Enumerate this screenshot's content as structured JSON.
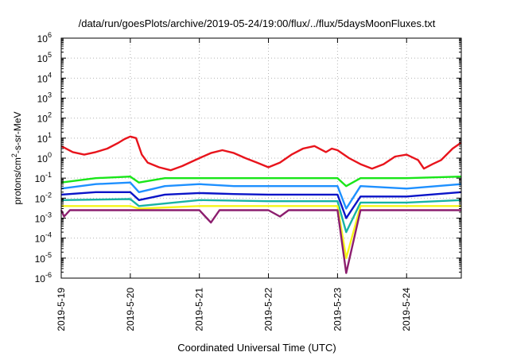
{
  "chart_data": {
    "type": "line",
    "title": "/data/run/goesPlots/archive/2019-05-24/19:00/flux/../flux/5daysMoonFluxes.txt",
    "xlabel": "Coordinated Universal Time (UTC)",
    "ylabel": {
      "pre": "protons/cm",
      "sup": "2",
      "post": "-s-sr-MeV"
    },
    "yscale": "log",
    "ylim": [
      1e-06,
      1000000.0
    ],
    "yticks": [
      {
        "value": 1e-06,
        "base": "10",
        "exp": "-6"
      },
      {
        "value": 1e-05,
        "base": "10",
        "exp": "-5"
      },
      {
        "value": 0.0001,
        "base": "10",
        "exp": "-4"
      },
      {
        "value": 0.001,
        "base": "10",
        "exp": "-3"
      },
      {
        "value": 0.01,
        "base": "10",
        "exp": "-2"
      },
      {
        "value": 0.1,
        "base": "10",
        "exp": "-1"
      },
      {
        "value": 1,
        "base": "10",
        "exp": "0"
      },
      {
        "value": 10,
        "base": "10",
        "exp": "1"
      },
      {
        "value": 100,
        "base": "10",
        "exp": "2"
      },
      {
        "value": 1000,
        "base": "10",
        "exp": "3"
      },
      {
        "value": 10000,
        "base": "10",
        "exp": "4"
      },
      {
        "value": 100000,
        "base": "10",
        "exp": "5"
      },
      {
        "value": 1000000,
        "base": "10",
        "exp": "6"
      }
    ],
    "xlim": [
      "2019-05-19",
      "2019-05-24T19:00"
    ],
    "xticks": [
      "2019-5-19",
      "2019-5-20",
      "2019-5-21",
      "2019-5-22",
      "2019-5-23",
      "2019-5-24"
    ],
    "grid": true,
    "series": [
      {
        "color": "#e8141c",
        "points": [
          [
            "2019-05-19T00:00",
            4
          ],
          [
            "2019-05-19T04:00",
            2
          ],
          [
            "2019-05-19T08:00",
            1.5
          ],
          [
            "2019-05-19T12:00",
            2
          ],
          [
            "2019-05-19T16:00",
            3
          ],
          [
            "2019-05-19T20:00",
            6
          ],
          [
            "2019-05-19T22:00",
            9
          ],
          [
            "2019-05-20T00:00",
            12
          ],
          [
            "2019-05-20T02:00",
            10
          ],
          [
            "2019-05-20T04:00",
            1.5
          ],
          [
            "2019-05-20T06:00",
            0.6
          ],
          [
            "2019-05-20T10:00",
            0.35
          ],
          [
            "2019-05-20T14:00",
            0.25
          ],
          [
            "2019-05-20T18:00",
            0.4
          ],
          [
            "2019-05-21T00:00",
            1
          ],
          [
            "2019-05-21T04:00",
            1.8
          ],
          [
            "2019-05-21T08:00",
            2.5
          ],
          [
            "2019-05-21T12:00",
            1.8
          ],
          [
            "2019-05-21T16:00",
            1
          ],
          [
            "2019-05-21T20:00",
            0.6
          ],
          [
            "2019-05-22T00:00",
            0.35
          ],
          [
            "2019-05-22T04:00",
            0.6
          ],
          [
            "2019-05-22T08:00",
            1.5
          ],
          [
            "2019-05-22T12:00",
            3
          ],
          [
            "2019-05-22T16:00",
            4
          ],
          [
            "2019-05-22T20:00",
            2
          ],
          [
            "2019-05-22T22:00",
            3
          ],
          [
            "2019-05-23T00:00",
            2.5
          ],
          [
            "2019-05-23T04:00",
            1
          ],
          [
            "2019-05-23T08:00",
            0.5
          ],
          [
            "2019-05-23T12:00",
            0.3
          ],
          [
            "2019-05-23T16:00",
            0.5
          ],
          [
            "2019-05-23T20:00",
            1.2
          ],
          [
            "2019-05-24T00:00",
            1.5
          ],
          [
            "2019-05-24T04:00",
            0.8
          ],
          [
            "2019-05-24T06:00",
            0.3
          ],
          [
            "2019-05-24T09:00",
            0.5
          ],
          [
            "2019-05-24T12:00",
            0.8
          ],
          [
            "2019-05-24T16:00",
            3
          ],
          [
            "2019-05-24T19:00",
            6
          ]
        ]
      },
      {
        "color": "#19e619",
        "points": [
          [
            "2019-05-19T00:00",
            0.06
          ],
          [
            "2019-05-19T12:00",
            0.1
          ],
          [
            "2019-05-20T00:00",
            0.12
          ],
          [
            "2019-05-20T03:00",
            0.06
          ],
          [
            "2019-05-20T12:00",
            0.1
          ],
          [
            "2019-05-21T00:00",
            0.1
          ],
          [
            "2019-05-21T12:00",
            0.1
          ],
          [
            "2019-05-22T00:00",
            0.1
          ],
          [
            "2019-05-22T12:00",
            0.1
          ],
          [
            "2019-05-23T00:00",
            0.1
          ],
          [
            "2019-05-23T03:00",
            0.04
          ],
          [
            "2019-05-23T08:00",
            0.1
          ],
          [
            "2019-05-24T00:00",
            0.1
          ],
          [
            "2019-05-24T19:00",
            0.12
          ]
        ]
      },
      {
        "color": "#1e90ff",
        "points": [
          [
            "2019-05-19T00:00",
            0.03
          ],
          [
            "2019-05-19T12:00",
            0.05
          ],
          [
            "2019-05-20T00:00",
            0.06
          ],
          [
            "2019-05-20T03:00",
            0.02
          ],
          [
            "2019-05-20T12:00",
            0.04
          ],
          [
            "2019-05-21T00:00",
            0.05
          ],
          [
            "2019-05-21T12:00",
            0.04
          ],
          [
            "2019-05-22T00:00",
            0.04
          ],
          [
            "2019-05-22T12:00",
            0.04
          ],
          [
            "2019-05-23T00:00",
            0.04
          ],
          [
            "2019-05-23T03:00",
            0.003
          ],
          [
            "2019-05-23T08:00",
            0.04
          ],
          [
            "2019-05-24T00:00",
            0.03
          ],
          [
            "2019-05-24T19:00",
            0.05
          ]
        ]
      },
      {
        "color": "#0a14c8",
        "points": [
          [
            "2019-05-19T00:00",
            0.015
          ],
          [
            "2019-05-19T12:00",
            0.02
          ],
          [
            "2019-05-20T00:00",
            0.02
          ],
          [
            "2019-05-20T03:00",
            0.008
          ],
          [
            "2019-05-20T12:00",
            0.015
          ],
          [
            "2019-05-21T00:00",
            0.018
          ],
          [
            "2019-05-21T12:00",
            0.016
          ],
          [
            "2019-05-22T00:00",
            0.015
          ],
          [
            "2019-05-22T12:00",
            0.015
          ],
          [
            "2019-05-23T00:00",
            0.015
          ],
          [
            "2019-05-23T03:00",
            0.001
          ],
          [
            "2019-05-23T08:00",
            0.012
          ],
          [
            "2019-05-24T00:00",
            0.012
          ],
          [
            "2019-05-24T19:00",
            0.02
          ]
        ]
      },
      {
        "color": "#17b3a3",
        "points": [
          [
            "2019-05-19T00:00",
            0.008
          ],
          [
            "2019-05-20T00:00",
            0.009
          ],
          [
            "2019-05-20T03:00",
            0.004
          ],
          [
            "2019-05-21T00:00",
            0.008
          ],
          [
            "2019-05-22T00:00",
            0.007
          ],
          [
            "2019-05-23T00:00",
            0.007
          ],
          [
            "2019-05-23T03:00",
            0.0002
          ],
          [
            "2019-05-23T08:00",
            0.006
          ],
          [
            "2019-05-24T00:00",
            0.006
          ],
          [
            "2019-05-24T19:00",
            0.008
          ]
        ]
      },
      {
        "color": "#f5f519",
        "points": [
          [
            "2019-05-19T00:00",
            0.004
          ],
          [
            "2019-05-20T00:00",
            0.004
          ],
          [
            "2019-05-20T03:00",
            0.003
          ],
          [
            "2019-05-21T00:00",
            0.004
          ],
          [
            "2019-05-22T00:00",
            0.004
          ],
          [
            "2019-05-23T00:00",
            0.004
          ],
          [
            "2019-05-23T03:00",
            1e-05
          ],
          [
            "2019-05-23T08:00",
            0.004
          ],
          [
            "2019-05-24T00:00",
            0.004
          ],
          [
            "2019-05-24T19:00",
            0.004
          ]
        ]
      },
      {
        "color": "#8c1e6e",
        "points": [
          [
            "2019-05-19T00:00",
            0.0025
          ],
          [
            "2019-05-19T01:00",
            0.0012
          ],
          [
            "2019-05-19T03:00",
            0.0025
          ],
          [
            "2019-05-20T00:00",
            0.0025
          ],
          [
            "2019-05-21T00:00",
            0.0025
          ],
          [
            "2019-05-21T04:00",
            0.0006
          ],
          [
            "2019-05-21T07:00",
            0.0025
          ],
          [
            "2019-05-22T00:00",
            0.0025
          ],
          [
            "2019-05-22T04:00",
            0.0012
          ],
          [
            "2019-05-22T07:00",
            0.0025
          ],
          [
            "2019-05-23T00:00",
            0.0025
          ],
          [
            "2019-05-23T03:00",
            1.8e-06
          ],
          [
            "2019-05-23T08:00",
            0.0025
          ],
          [
            "2019-05-24T00:00",
            0.0025
          ],
          [
            "2019-05-24T19:00",
            0.0025
          ]
        ]
      }
    ]
  }
}
